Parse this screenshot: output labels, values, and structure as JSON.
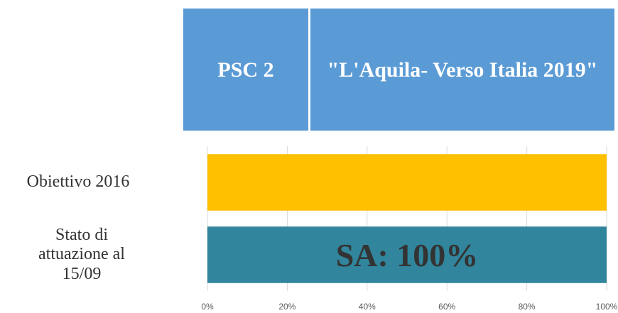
{
  "header": {
    "cells": [
      "PSC 2",
      "\"L'Aquila- Verso Italia 2019\""
    ]
  },
  "chart_data": {
    "type": "barh",
    "categories": [
      "Obiettivo 2016",
      "Stato di attuazione al 15/09"
    ],
    "values": [
      100,
      100
    ],
    "value_labels": [
      null,
      "SA: 100%"
    ],
    "colors": [
      "#FFC000",
      "#31859C"
    ],
    "xlim": [
      0,
      100
    ],
    "xticks": [
      {
        "value": 0,
        "label": "0%"
      },
      {
        "value": 20,
        "label": "20%"
      },
      {
        "value": 40,
        "label": "40%"
      },
      {
        "value": 60,
        "label": "60%"
      },
      {
        "value": 80,
        "label": "80%"
      },
      {
        "value": 100,
        "label": "100%"
      }
    ],
    "grid": true
  }
}
